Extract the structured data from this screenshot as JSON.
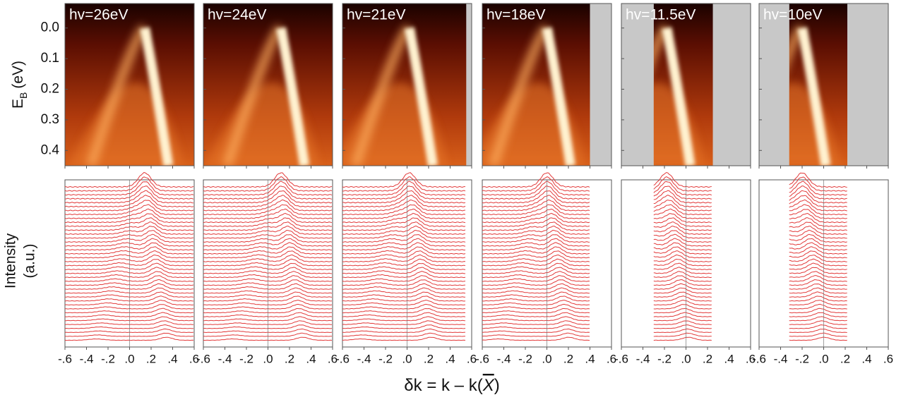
{
  "chart_data": [
    {
      "type": "arpes",
      "title": "hv=26eV",
      "xlim": [
        -0.6,
        0.6
      ],
      "data_k_range": [
        -0.6,
        0.6
      ],
      "band_top_k": 0.14,
      "xticks": [
        {
          "value": -0.6,
          "label": "-.6"
        },
        {
          "value": -0.4,
          "label": "-.4"
        },
        {
          "value": -0.2,
          "label": "-.2"
        },
        {
          "value": 0,
          "label": ".0"
        },
        {
          "value": 0.2,
          "label": ".2"
        },
        {
          "value": 0.4,
          "label": ".4"
        },
        {
          "value": 0.6,
          "label": ".6"
        }
      ]
    },
    {
      "type": "arpes",
      "title": "hv=24eV",
      "xlim": [
        -0.6,
        0.6
      ],
      "data_k_range": [
        -0.6,
        0.6
      ],
      "band_top_k": 0.12,
      "xticks": [
        {
          "value": -0.6,
          "label": "-.6"
        },
        {
          "value": -0.4,
          "label": "-.4"
        },
        {
          "value": -0.2,
          "label": "-.2"
        },
        {
          "value": 0,
          "label": ".0"
        },
        {
          "value": 0.2,
          "label": ".2"
        },
        {
          "value": 0.4,
          "label": ".4"
        },
        {
          "value": 0.6,
          "label": ".6"
        }
      ]
    },
    {
      "type": "arpes",
      "title": "hv=21eV",
      "xlim": [
        -0.6,
        0.6
      ],
      "data_k_range": [
        -0.6,
        0.55
      ],
      "band_top_k": 0.02,
      "xticks": [
        {
          "value": -0.6,
          "label": "-.6"
        },
        {
          "value": -0.4,
          "label": "-.4"
        },
        {
          "value": -0.2,
          "label": "-.2"
        },
        {
          "value": 0,
          "label": ".0"
        },
        {
          "value": 0.2,
          "label": ".2"
        },
        {
          "value": 0.4,
          "label": ".4"
        },
        {
          "value": 0.6,
          "label": ".6"
        }
      ]
    },
    {
      "type": "arpes",
      "title": "hv=18eV",
      "xlim": [
        -0.6,
        0.6
      ],
      "data_k_range": [
        -0.6,
        0.4
      ],
      "band_top_k": 0.0,
      "xticks": [
        {
          "value": -0.6,
          "label": "-.6"
        },
        {
          "value": -0.4,
          "label": "-.4"
        },
        {
          "value": -0.2,
          "label": "-.2"
        },
        {
          "value": 0,
          "label": ".0"
        },
        {
          "value": 0.2,
          "label": ".2"
        },
        {
          "value": 0.4,
          "label": ".4"
        },
        {
          "value": 0.6,
          "label": ".6"
        }
      ]
    },
    {
      "type": "arpes",
      "title": "hv=11.5eV",
      "xlim": [
        -0.6,
        0.6
      ],
      "data_k_range": [
        -0.3,
        0.25
      ],
      "band_top_k": -0.18,
      "xticks": [
        {
          "value": -0.6,
          "label": "-.6"
        },
        {
          "value": -0.4,
          "label": "-.4"
        },
        {
          "value": -0.2,
          "label": "-.2"
        },
        {
          "value": 0,
          "label": ".0"
        },
        {
          "value": 0.2,
          "label": ".2"
        },
        {
          "value": 0.4,
          "label": ".4"
        },
        {
          "value": 0.6,
          "label": ".6"
        }
      ]
    },
    {
      "type": "arpes",
      "title": "hv=10eV",
      "xlim": [
        -0.6,
        0.6
      ],
      "data_k_range": [
        -0.32,
        0.22
      ],
      "band_top_k": -0.2,
      "xticks": [
        {
          "value": -0.6,
          "label": "-.6"
        },
        {
          "value": -0.4,
          "label": "-.4"
        },
        {
          "value": -0.2,
          "label": "-.2"
        },
        {
          "value": 0,
          "label": ".0"
        },
        {
          "value": 0.2,
          "label": ".2"
        },
        {
          "value": 0.4,
          "label": ".4"
        },
        {
          "value": 0.6,
          "label": ".6"
        }
      ]
    }
  ],
  "energy_axis": {
    "label": "E",
    "label_sub": "B",
    "label_unit": "(eV)",
    "ylim": [
      -0.08,
      0.45
    ],
    "yticks": [
      {
        "value": 0,
        "label": "0.0"
      },
      0.1,
      0.2,
      0.3,
      0.4
    ]
  },
  "intensity_axis": {
    "label_line1": "Intensity",
    "label_line2": "(a.u.)"
  },
  "x_axis": {
    "label_pre": "δk = k – k(",
    "label_symbol": "X",
    "label_post": ")"
  }
}
